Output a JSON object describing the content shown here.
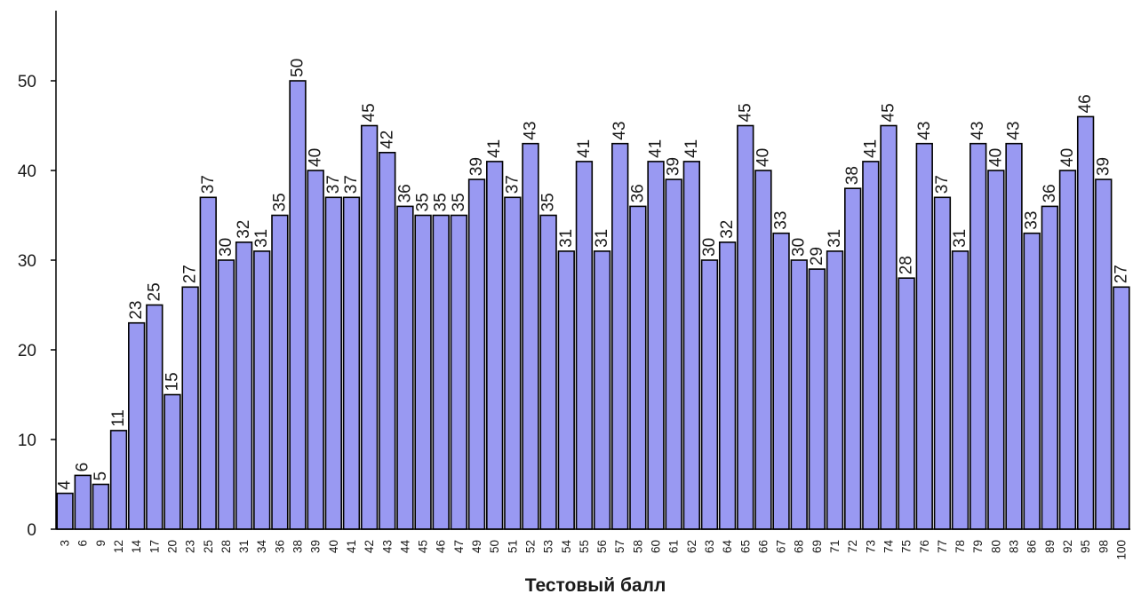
{
  "chart_data": {
    "type": "bar",
    "title": "",
    "xlabel": "Тестовый балл",
    "ylabel": "",
    "ylim": [
      0,
      50
    ],
    "yticks": [
      0,
      10,
      20,
      30,
      40,
      50
    ],
    "grid": false,
    "legend": "none",
    "bar_color": "#9999f2",
    "categories": [
      "3",
      "6",
      "9",
      "12",
      "14",
      "17",
      "20",
      "23",
      "25",
      "28",
      "31",
      "34",
      "36",
      "38",
      "39",
      "40",
      "41",
      "42",
      "43",
      "44",
      "45",
      "46",
      "47",
      "49",
      "50",
      "51",
      "52",
      "53",
      "54",
      "55",
      "56",
      "57",
      "58",
      "60",
      "61",
      "62",
      "63",
      "64",
      "65",
      "66",
      "67",
      "68",
      "69",
      "71",
      "72",
      "73",
      "74",
      "75",
      "76",
      "77",
      "78",
      "79",
      "80",
      "83",
      "86",
      "89",
      "92",
      "95",
      "98",
      "100"
    ],
    "values": [
      4,
      6,
      5,
      11,
      23,
      25,
      15,
      27,
      37,
      30,
      32,
      31,
      35,
      50,
      40,
      37,
      37,
      45,
      42,
      36,
      35,
      35,
      35,
      39,
      41,
      37,
      43,
      35,
      31,
      41,
      31,
      43,
      36,
      41,
      39,
      41,
      30,
      32,
      45,
      40,
      33,
      30,
      29,
      31,
      38,
      41,
      45,
      28,
      43,
      37,
      31,
      43,
      40,
      43,
      33,
      36,
      40,
      46,
      39,
      27
    ]
  }
}
